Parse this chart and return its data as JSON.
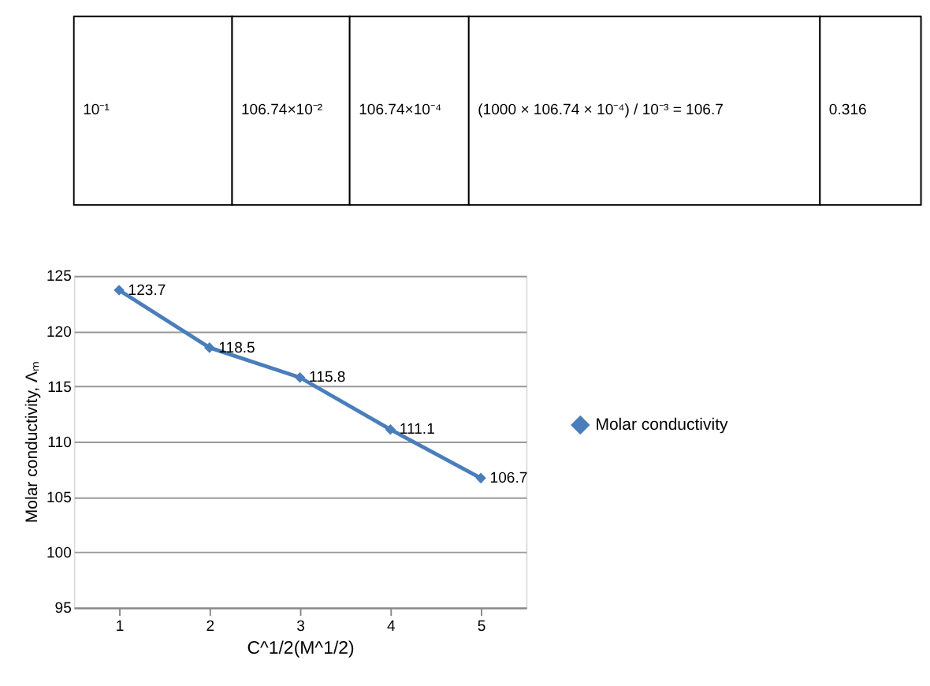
{
  "chart_data": {
    "type": "line",
    "annotations": [
      "10⁻¹",
      "106.74×10⁻²",
      "106.74×10⁻⁴",
      "(1000 × 106.74 × 10⁻⁴) / 10⁻³ = 106.7",
      "0.316"
    ],
    "categories": [
      "1",
      "2",
      "3",
      "4",
      "5"
    ],
    "series": [
      {
        "name": "Molar conductivity",
        "color": "#4a7ebb",
        "values": [
          123.7,
          118.5,
          115.8,
          111.1,
          106.7
        ]
      }
    ],
    "xlabel": "C^1/2(M^1/2)",
    "ylabel": "Molar conductivity, Λₘ",
    "ylim": [
      95,
      125
    ],
    "yticks": [
      95,
      100,
      105,
      110,
      115,
      120,
      125
    ],
    "grid": "y",
    "legend": "right",
    "marker": "diamond",
    "line_style": "solid",
    "data_labels": true
  }
}
